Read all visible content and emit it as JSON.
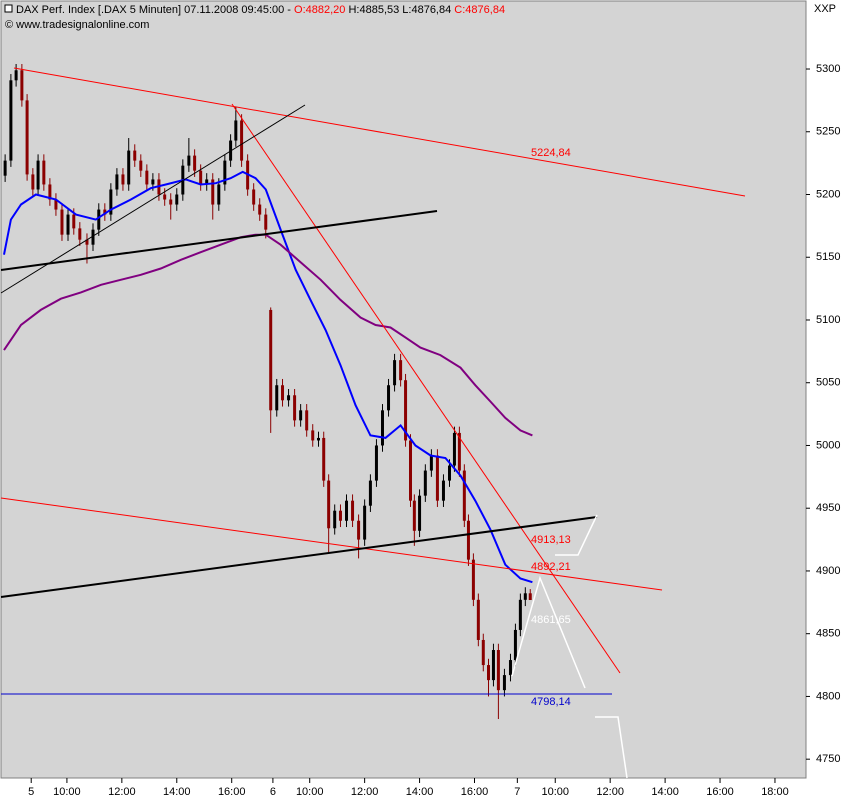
{
  "header": {
    "title": "DAX Perf. Index [.DAX  5 Minuten] 07.11.2008 09:45:00 -",
    "open": "O:4882,20",
    "high_low": "H:4885,53 L:4876,84",
    "close": "C:4876,84",
    "source": "© www.tradesignalonline.com"
  },
  "chart_data": {
    "type": "candlestick",
    "axis_label": "XXP",
    "x": [
      -1.25,
      -1.04,
      -0.85,
      -0.64,
      -0.45,
      -0.24,
      -0.05,
      0.16,
      0.38,
      0.6,
      0.82,
      1.04,
      1.25,
      1.47,
      1.73,
      1.95,
      2.16,
      2.38,
      2.6,
      2.82,
      3.04,
      3.25,
      3.47,
      3.69,
      3.91,
      4.13,
      4.35,
      4.56,
      4.78,
      5.0,
      5.22,
      5.44,
      5.65,
      5.87,
      6.09,
      6.31,
      6.53,
      6.75,
      6.96,
      7.15,
      7.36,
      7.58,
      7.8,
      8.02,
      8.24,
      8.42,
      8.64,
      8.85,
      9.07,
      9.29,
      9.51,
      9.73,
      9.95,
      10.16,
      10.35,
      10.53,
      10.75,
      10.96,
      11.18,
      11.4,
      11.62,
      11.84,
      12.05,
      12.27,
      12.49,
      12.71,
      12.93,
      13.15,
      13.33,
      13.51,
      13.65,
      13.84,
      14.05,
      14.27,
      14.49,
      14.71,
      14.93,
      15.11,
      15.29,
      15.47,
      15.62,
      15.8,
      15.98,
      16.16,
      16.35,
      16.53,
      16.71,
      16.93,
      17.15,
      17.33,
      17.51,
      17.69,
      17.87
    ],
    "open": [
      5215,
      5227,
      5291,
      5299,
      5275,
      5216,
      5204,
      5227,
      5208,
      5196,
      5188,
      5168,
      5184,
      5173,
      5164,
      5160,
      5172,
      5188,
      5184,
      5204,
      5216,
      5208,
      5235,
      5227,
      5219,
      5208,
      5212,
      5200,
      5196,
      5192,
      5200,
      5223,
      5231,
      5219,
      5208,
      5212,
      5192,
      5208,
      5227,
      5243,
      5259,
      5227,
      5204,
      5192,
      5184,
      5108,
      5028,
      5048,
      5036,
      5040,
      5020,
      5028,
      5012,
      5004,
      5006,
      4972,
      4934,
      4948,
      4940,
      4956,
      4940,
      4925,
      4952,
      4972,
      5000,
      5028,
      5048,
      5068,
      5052,
      5004,
      4956,
      4932,
      4960,
      4980,
      4992,
      4956,
      4972,
      4984,
      5010,
      4980,
      4940,
      4909,
      4877,
      4845,
      4825,
      4813,
      4837,
      4805,
      4817,
      4829,
      4853,
      4877,
      4882.2
    ],
    "high": [
      5232,
      5296,
      5304,
      5304,
      5280,
      5221,
      5232,
      5232,
      5213,
      5201,
      5193,
      5189,
      5189,
      5178,
      5169,
      5177,
      5193,
      5193,
      5209,
      5221,
      5221,
      5245,
      5240,
      5232,
      5224,
      5217,
      5217,
      5205,
      5201,
      5205,
      5228,
      5245,
      5236,
      5224,
      5217,
      5217,
      5213,
      5232,
      5248,
      5270,
      5264,
      5232,
      5209,
      5197,
      5189,
      5110,
      5053,
      5053,
      5045,
      5045,
      5033,
      5033,
      5017,
      5011,
      5011,
      4977,
      4953,
      4953,
      4961,
      4961,
      4945,
      4957,
      4977,
      5005,
      5033,
      5053,
      5073,
      5073,
      5057,
      5009,
      4961,
      4965,
      4985,
      4997,
      4997,
      4977,
      4989,
      5015,
      5015,
      4985,
      4945,
      4914,
      4882,
      4850,
      4830,
      4842,
      4842,
      4822,
      4834,
      4858,
      4882,
      4887,
      4885.53
    ],
    "low": [
      5210,
      5222,
      5286,
      5270,
      5211,
      5199,
      5199,
      5203,
      5191,
      5183,
      5163,
      5163,
      5168,
      5159,
      5145,
      5155,
      5167,
      5179,
      5179,
      5199,
      5203,
      5203,
      5222,
      5214,
      5203,
      5203,
      5195,
      5191,
      5180,
      5187,
      5195,
      5218,
      5214,
      5203,
      5203,
      5180,
      5187,
      5203,
      5222,
      5238,
      5222,
      5199,
      5187,
      5179,
      5165,
      5010,
      5023,
      5031,
      5031,
      5015,
      5015,
      5007,
      4999,
      4999,
      4967,
      4915,
      4929,
      4935,
      4935,
      4935,
      4910,
      4920,
      4947,
      4967,
      4995,
      5023,
      5043,
      5047,
      4999,
      4951,
      4920,
      4927,
      4955,
      4975,
      4951,
      4951,
      4967,
      4979,
      4975,
      4935,
      4904,
      4872,
      4840,
      4820,
      4800,
      4808,
      4782,
      4800,
      4812,
      4824,
      4848,
      4872,
      4876.84
    ],
    "close": [
      5227,
      5291,
      5299,
      5275,
      5216,
      5204,
      5227,
      5208,
      5196,
      5188,
      5168,
      5184,
      5173,
      5164,
      5160,
      5172,
      5188,
      5184,
      5204,
      5216,
      5208,
      5235,
      5227,
      5219,
      5208,
      5212,
      5200,
      5196,
      5192,
      5200,
      5223,
      5231,
      5219,
      5208,
      5212,
      5192,
      5208,
      5227,
      5243,
      5259,
      5227,
      5204,
      5192,
      5184,
      5172,
      5028,
      5048,
      5036,
      5040,
      5020,
      5028,
      5012,
      5004,
      5006,
      4972,
      4934,
      4948,
      4940,
      4956,
      4940,
      4925,
      4952,
      4972,
      5000,
      5028,
      5048,
      5068,
      5052,
      5004,
      4956,
      4932,
      4960,
      4980,
      4992,
      4956,
      4972,
      4984,
      5010,
      4980,
      4940,
      4909,
      4877,
      4845,
      4825,
      4813,
      4837,
      4805,
      4817,
      4829,
      4853,
      4877,
      4882.2,
      4876.84
    ],
    "up_color": "#000000",
    "down_color": "#8b0000",
    "series": [
      {
        "color": "#0000ff",
        "x": [
          -1.29,
          -1.04,
          -0.67,
          -0.13,
          0.6,
          1.33,
          2.05,
          2.6,
          3.33,
          4.05,
          4.6,
          5.33,
          5.87,
          6.42,
          6.96,
          7.4,
          7.87,
          8.24,
          8.78,
          9.33,
          9.87,
          10.42,
          10.96,
          11.51,
          12.05,
          12.6,
          13.15,
          13.69,
          14.24,
          14.78,
          15.33,
          15.87,
          16.42,
          16.96,
          17.51,
          17.95
        ],
        "values": [
          5152,
          5180,
          5192,
          5200,
          5196,
          5184,
          5180,
          5188,
          5196,
          5205,
          5208,
          5212,
          5208,
          5209,
          5213,
          5218,
          5213,
          5204,
          5172,
          5140,
          5116,
          5092,
          5064,
          5032,
          5008,
          5006,
          5016,
          5000,
          4992,
          4990,
          4976,
          4956,
          4933,
          4905,
          4894,
          4891
        ]
      },
      {
        "color": "#800080",
        "x": [
          -1.29,
          -0.67,
          0.05,
          0.78,
          1.51,
          2.24,
          2.96,
          3.69,
          4.42,
          5.15,
          5.87,
          6.6,
          7.33,
          7.87,
          8.24,
          8.78,
          9.51,
          10.24,
          10.96,
          11.69,
          12.24,
          12.78,
          13.33,
          13.87,
          14.6,
          15.33,
          15.87,
          16.42,
          16.96,
          17.51,
          17.95
        ],
        "values": [
          5076,
          5096,
          5108,
          5117,
          5122,
          5128,
          5132,
          5136,
          5141,
          5148,
          5154,
          5160,
          5166,
          5168,
          5168,
          5160,
          5146,
          5132,
          5116,
          5102,
          5096,
          5094,
          5086,
          5078,
          5072,
          5062,
          5048,
          5035,
          5022,
          5012,
          5008
        ]
      }
    ],
    "xlim": [
      -1.4,
      27.91
    ],
    "xticks": [
      {
        "value": -0.3,
        "label": "5"
      },
      {
        "value": 1,
        "label": "10:00"
      },
      {
        "value": 3,
        "label": "12:00"
      },
      {
        "value": 5,
        "label": "14:00"
      },
      {
        "value": 7,
        "label": "16:00"
      },
      {
        "value": 8.5,
        "label": "6"
      },
      {
        "value": 9.84,
        "label": "10:00"
      },
      {
        "value": 11.84,
        "label": "12:00"
      },
      {
        "value": 13.84,
        "label": "14:00"
      },
      {
        "value": 15.84,
        "label": "16:00"
      },
      {
        "value": 17.4,
        "label": "7"
      },
      {
        "value": 18.78,
        "label": "10:00"
      },
      {
        "value": 20.78,
        "label": "12:00"
      },
      {
        "value": 22.78,
        "label": "14:00"
      },
      {
        "value": 24.78,
        "label": "16:00"
      },
      {
        "value": 26.78,
        "label": "18:00"
      }
    ],
    "ylim": [
      4735,
      5355
    ],
    "yticks": [
      4750,
      4800,
      4850,
      4900,
      4950,
      5000,
      5050,
      5100,
      5150,
      5200,
      5250,
      5300
    ],
    "annotations": [
      "5224,84",
      "4913,13",
      "4892,21",
      "4861,65",
      "4798,14"
    ]
  }
}
